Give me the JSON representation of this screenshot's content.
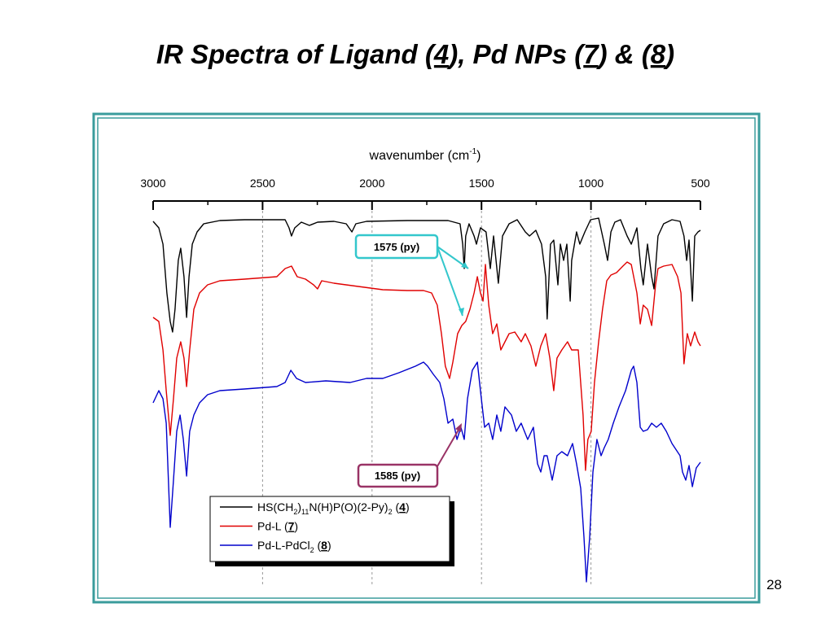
{
  "chart_data": {
    "type": "line",
    "title": "IR Spectra of Ligand (4), Pd NPs (7) & (8)",
    "x_label": "wavenumber (cm-1)",
    "page_number": "28",
    "xlim": [
      3000,
      500
    ],
    "xticks": [
      3000,
      2500,
      2000,
      1500,
      1000,
      500
    ],
    "ylim": [
      0,
      460
    ],
    "grid": "x-dashed",
    "legend": "bottom-left",
    "annotations": [
      {
        "text": "1575  (py)",
        "x": 1575,
        "color": "#33c7cc"
      },
      {
        "text": "1585 (py)",
        "x": 1585,
        "color": "#993366"
      }
    ],
    "series": [
      {
        "name": "HS(CH2)11N(H)P(O)(2-Py)2 (4)",
        "color": "#000000",
        "x": [
          3000,
          2974,
          2955,
          2937,
          2922,
          2911,
          2900,
          2885,
          2874,
          2859,
          2847,
          2836,
          2821,
          2799,
          2769,
          2695,
          2583,
          2397,
          2379,
          2368,
          2353,
          2323,
          2286,
          2249,
          2174,
          2118,
          2092,
          2074,
          2025,
          1839,
          1653,
          1598,
          1586,
          1579,
          1572,
          1557,
          1534,
          1523,
          1505,
          1479,
          1460,
          1445,
          1423,
          1404,
          1374,
          1337,
          1300,
          1281,
          1252,
          1226,
          1207,
          1200,
          1185,
          1170,
          1151,
          1140,
          1125,
          1110,
          1095,
          1088,
          1066,
          1051,
          1028,
          1002,
          965,
          939,
          924,
          909,
          891,
          865,
          835,
          816,
          790,
          772,
          761,
          742,
          723,
          712,
          694,
          668,
          630,
          593,
          575,
          563,
          552,
          537,
          526,
          511,
          500
        ],
        "values": [
          448,
          440,
          420,
          360,
          325,
          312,
          340,
          400,
          415,
          380,
          330,
          380,
          420,
          435,
          445,
          449,
          450,
          450,
          440,
          430,
          440,
          447,
          443,
          447,
          448,
          445,
          435,
          445,
          448,
          449,
          449,
          445,
          420,
          390,
          430,
          445,
          430,
          420,
          440,
          435,
          390,
          430,
          372,
          430,
          445,
          450,
          435,
          430,
          437,
          420,
          380,
          328,
          420,
          425,
          370,
          420,
          400,
          420,
          350,
          400,
          435,
          420,
          435,
          450,
          452,
          420,
          400,
          435,
          447,
          450,
          430,
          420,
          440,
          390,
          370,
          420,
          380,
          365,
          430,
          445,
          450,
          448,
          430,
          400,
          425,
          350,
          430,
          435,
          437
        ]
      },
      {
        "name": "Pd-L (7)",
        "color": "#e00000",
        "x": [
          3000,
          2974,
          2955,
          2940,
          2922,
          2907,
          2892,
          2874,
          2859,
          2847,
          2833,
          2814,
          2788,
          2751,
          2695,
          2583,
          2435,
          2397,
          2368,
          2342,
          2304,
          2267,
          2249,
          2230,
          2174,
          2063,
          1951,
          1839,
          1765,
          1728,
          1702,
          1683,
          1665,
          1646,
          1631,
          1609,
          1590,
          1572,
          1553,
          1534,
          1519,
          1505,
          1493,
          1482,
          1467,
          1449,
          1430,
          1412,
          1393,
          1374,
          1348,
          1319,
          1300,
          1274,
          1252,
          1229,
          1207,
          1188,
          1170,
          1155,
          1133,
          1107,
          1088,
          1058,
          1036,
          1025,
          1014,
          999,
          984,
          965,
          947,
          928,
          909,
          883,
          854,
          835,
          816,
          790,
          775,
          761,
          742,
          723,
          705,
          694,
          668,
          630,
          604,
          589,
          575,
          560,
          545,
          526,
          511,
          500
        ],
        "values": [
          330,
          325,
          290,
          240,
          185,
          230,
          280,
          300,
          280,
          245,
          290,
          340,
          360,
          370,
          375,
          377,
          380,
          390,
          393,
          380,
          377,
          370,
          365,
          375,
          372,
          368,
          364,
          363,
          363,
          360,
          345,
          310,
          270,
          255,
          275,
          310,
          320,
          325,
          340,
          360,
          380,
          360,
          350,
          395,
          345,
          310,
          322,
          290,
          300,
          310,
          312,
          300,
          310,
          295,
          270,
          295,
          310,
          280,
          240,
          280,
          290,
          300,
          290,
          290,
          210,
          142,
          180,
          190,
          250,
          300,
          340,
          375,
          382,
          385,
          393,
          398,
          395,
          360,
          322,
          345,
          340,
          320,
          370,
          390,
          393,
          395,
          380,
          360,
          273,
          310,
          295,
          312,
          300,
          295
        ]
      },
      {
        "name": "Pd-L-PdCl2 (8)",
        "color": "#0000cc",
        "x": [
          3000,
          2974,
          2955,
          2940,
          2922,
          2907,
          2892,
          2877,
          2862,
          2847,
          2833,
          2814,
          2788,
          2751,
          2695,
          2583,
          2435,
          2397,
          2371,
          2345,
          2304,
          2211,
          2100,
          2025,
          1951,
          1877,
          1802,
          1765,
          1746,
          1720,
          1691,
          1672,
          1653,
          1631,
          1612,
          1594,
          1579,
          1564,
          1542,
          1519,
          1505,
          1486,
          1467,
          1449,
          1430,
          1412,
          1393,
          1363,
          1341,
          1319,
          1289,
          1263,
          1244,
          1229,
          1214,
          1200,
          1177,
          1155,
          1133,
          1107,
          1084,
          1066,
          1047,
          1032,
          1021,
          1006,
          991,
          973,
          954,
          939,
          921,
          898,
          872,
          842,
          816,
          805,
          790,
          775,
          761,
          742,
          723,
          701,
          679,
          656,
          630,
          593,
          582,
          567,
          552,
          537,
          519,
          500
        ],
        "values": [
          225,
          240,
          230,
          200,
          72,
          130,
          190,
          210,
          180,
          135,
          190,
          210,
          225,
          235,
          240,
          242,
          245,
          250,
          265,
          255,
          250,
          252,
          250,
          255,
          255,
          262,
          270,
          275,
          270,
          260,
          250,
          230,
          200,
          205,
          180,
          195,
          180,
          230,
          265,
          275,
          240,
          195,
          200,
          180,
          210,
          190,
          220,
          210,
          190,
          200,
          180,
          195,
          150,
          140,
          160,
          160,
          130,
          160,
          165,
          160,
          175,
          150,
          120,
          60,
          5,
          60,
          140,
          180,
          160,
          170,
          180,
          200,
          220,
          240,
          265,
          270,
          250,
          195,
          190,
          192,
          200,
          195,
          200,
          190,
          175,
          160,
          140,
          130,
          148,
          122,
          145,
          152
        ]
      }
    ]
  }
}
